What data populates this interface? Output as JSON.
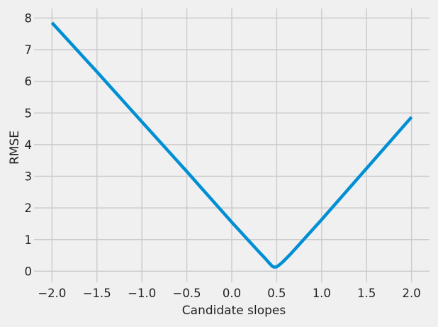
{
  "chart_data": {
    "type": "line",
    "title": "",
    "xlabel": "Candidate slopes",
    "ylabel": "RMSE",
    "xlim": [
      -2.2,
      2.2
    ],
    "ylim": [
      -0.35,
      8.3
    ],
    "grid": true,
    "xticks": [
      -2.0,
      -1.5,
      -1.0,
      -0.5,
      0.0,
      0.5,
      1.0,
      1.5,
      2.0
    ],
    "xtick_labels": [
      "−2.0",
      "−1.5",
      "−1.0",
      "−0.5",
      "0.0",
      "0.5",
      "1.0",
      "1.5",
      "2.0"
    ],
    "yticks": [
      0,
      1,
      2,
      3,
      4,
      5,
      6,
      7,
      8
    ],
    "ytick_labels": [
      "0",
      "1",
      "2",
      "3",
      "4",
      "5",
      "6",
      "7",
      "8"
    ],
    "series": [
      {
        "color": "#008fd5",
        "x": [
          -2.0,
          -1.5,
          -1.0,
          -0.5,
          0.0,
          0.2,
          0.3,
          0.38,
          0.42,
          0.45,
          0.47,
          0.5,
          0.53,
          0.57,
          0.65,
          0.8,
          1.0,
          1.5,
          2.0
        ],
        "y": [
          7.85,
          6.3,
          4.72,
          3.15,
          1.55,
          0.93,
          0.62,
          0.38,
          0.25,
          0.16,
          0.13,
          0.14,
          0.2,
          0.3,
          0.53,
          1.0,
          1.63,
          3.25,
          4.87
        ]
      }
    ]
  }
}
